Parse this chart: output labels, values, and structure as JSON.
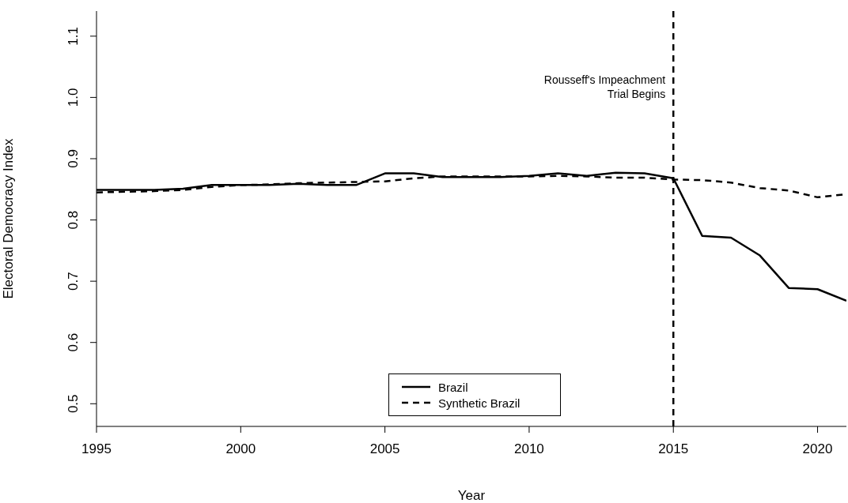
{
  "chart_data": {
    "type": "line",
    "xlabel": "Year",
    "ylabel": "Electoral Democracy Index",
    "x": [
      1995,
      1996,
      1997,
      1998,
      1999,
      2000,
      2001,
      2002,
      2003,
      2004,
      2005,
      2006,
      2007,
      2008,
      2009,
      2010,
      2011,
      2012,
      2013,
      2014,
      2015,
      2016,
      2017,
      2018,
      2019,
      2020,
      2021
    ],
    "series": [
      {
        "name": "Brazil",
        "color": "#000000",
        "line_style": "solid",
        "values": [
          0.849,
          0.849,
          0.849,
          0.851,
          0.857,
          0.857,
          0.857,
          0.859,
          0.857,
          0.857,
          0.876,
          0.876,
          0.87,
          0.87,
          0.87,
          0.872,
          0.876,
          0.872,
          0.877,
          0.876,
          0.868,
          0.774,
          0.771,
          0.742,
          0.689,
          0.687,
          0.668
        ]
      },
      {
        "name": "Synthetic Brazil",
        "color": "#000000",
        "line_style": "dashed",
        "values": [
          0.845,
          0.846,
          0.847,
          0.849,
          0.854,
          0.857,
          0.858,
          0.86,
          0.861,
          0.862,
          0.863,
          0.868,
          0.871,
          0.871,
          0.871,
          0.871,
          0.872,
          0.871,
          0.869,
          0.869,
          0.866,
          0.865,
          0.861,
          0.852,
          0.848,
          0.837,
          0.842
        ]
      }
    ],
    "xlim": [
      1995,
      2021
    ],
    "xticks": [
      1995,
      2000,
      2005,
      2010,
      2015,
      2020
    ],
    "ylim": [
      0.463,
      1.141
    ],
    "yticks": [
      0.5,
      0.6,
      0.7,
      0.8,
      0.9,
      {
        "value": 1,
        "label": "1.0"
      },
      1.1
    ],
    "ref_lines": [
      {
        "axis": "x",
        "value": 2015,
        "label": "Rousseff's Impeachment\nTrial Begins",
        "line_style": "dashed",
        "color": "#000000"
      }
    ],
    "grid": false,
    "legend": "bottom",
    "marker": "none"
  }
}
